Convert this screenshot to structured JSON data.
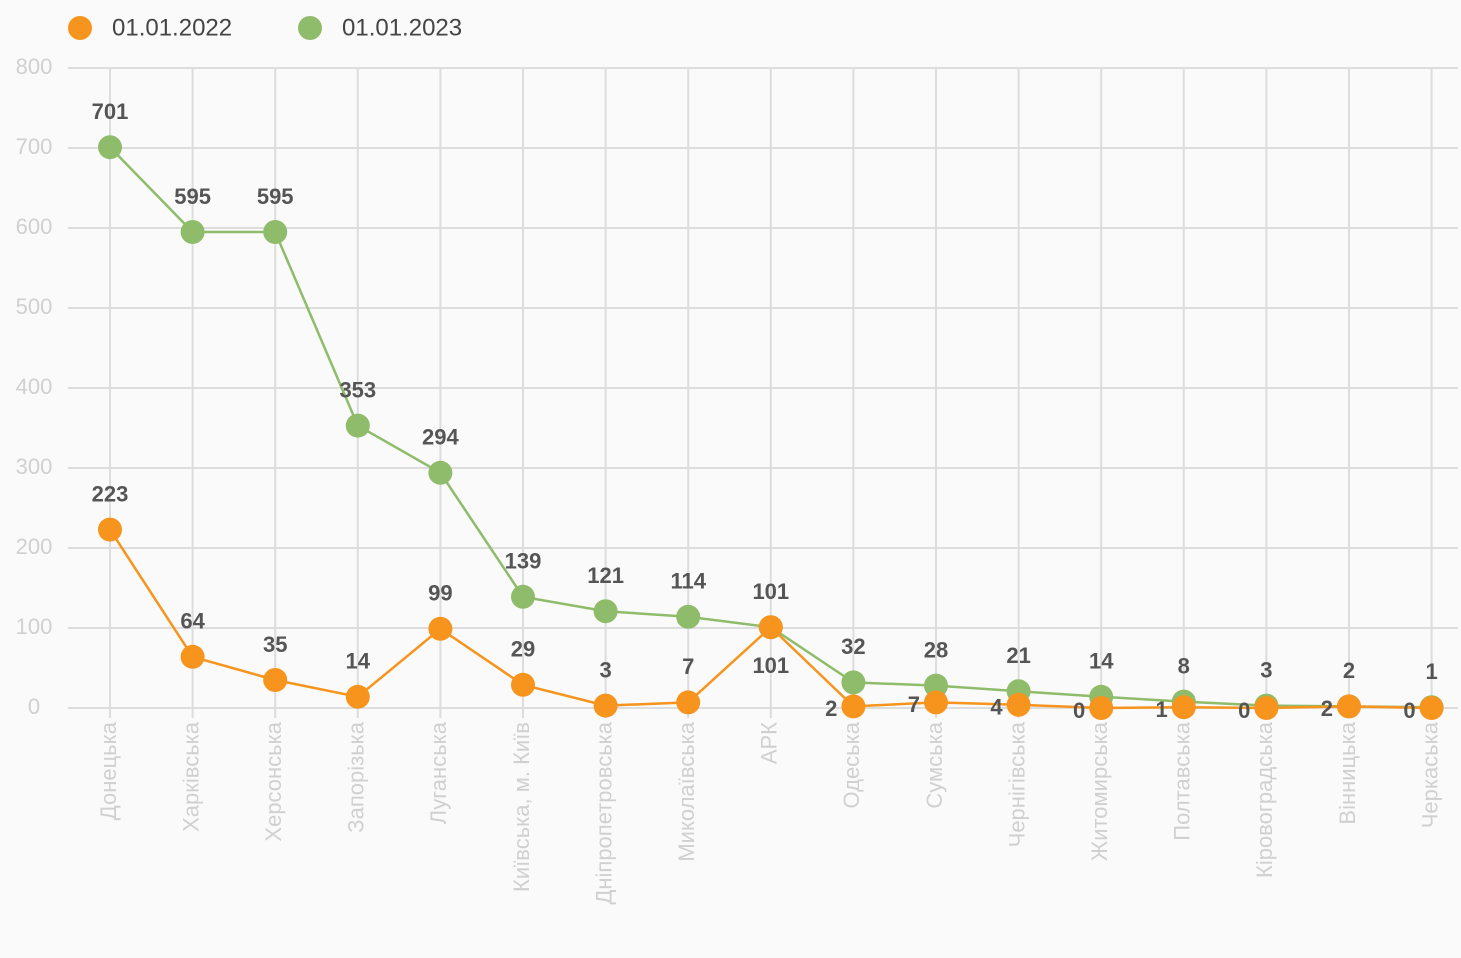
{
  "chart_data": {
    "type": "line",
    "categories": [
      "Донецька",
      "Харківська",
      "Херсонська",
      "Запорізька",
      "Луганська",
      "Київська, м. Київ",
      "Дніпропетровська",
      "Миколаївська",
      "АРК",
      "Одеська",
      "Сумська",
      "Чернігівська",
      "Житомирська",
      "Полтавська",
      "Кіровоградська",
      "Вінницька",
      "Черкаська"
    ],
    "series": [
      {
        "name": "01.01.2022",
        "color": "#f7941d",
        "values": [
          223,
          64,
          35,
          14,
          99,
          29,
          3,
          7,
          101,
          2,
          7,
          4,
          0,
          1,
          0,
          2,
          0
        ]
      },
      {
        "name": "01.01.2023",
        "color": "#8fbc6a",
        "values": [
          701,
          595,
          595,
          353,
          294,
          139,
          121,
          114,
          101,
          32,
          28,
          21,
          14,
          8,
          3,
          2,
          1
        ]
      }
    ],
    "ylim": [
      0,
      800
    ],
    "yticks": [
      0,
      100,
      200,
      300,
      400,
      500,
      600,
      700,
      800
    ],
    "grid": true,
    "legend": "top-left"
  }
}
